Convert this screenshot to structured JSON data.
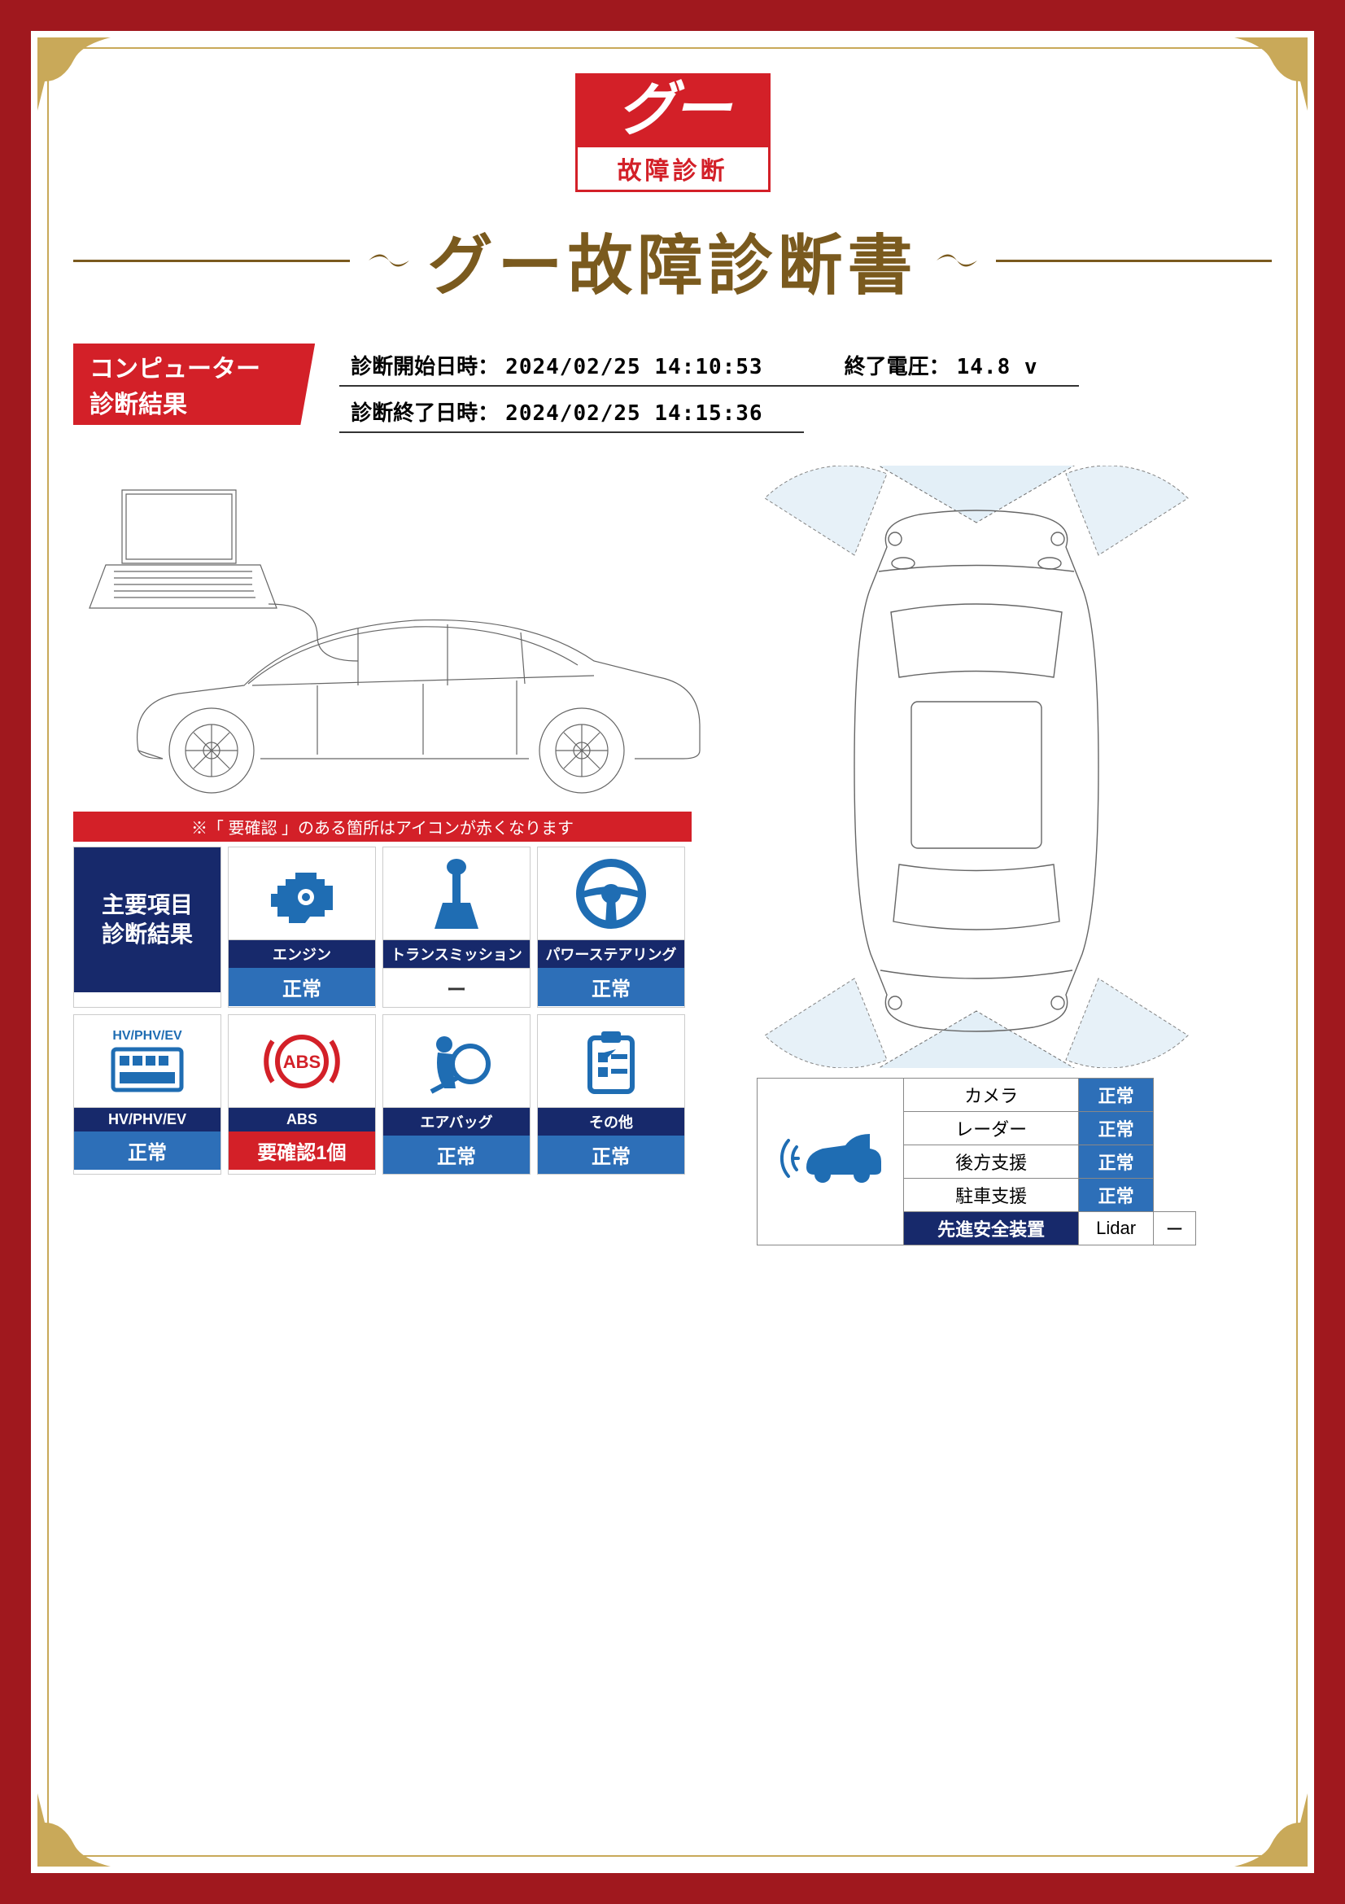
{
  "colors": {
    "frame_red": "#a0181e",
    "gold": "#c9a959",
    "brand_red": "#d32028",
    "title_gold": "#7a5a1e",
    "dark_navy": "#17296b",
    "blue": "#2d6fb8",
    "icon_blue": "#1f6db3",
    "icon_red": "#d32028",
    "line_gray": "#888888",
    "sensor_fill": "#d8e9f4"
  },
  "logo": {
    "top": "グー",
    "bottom": "故障診断"
  },
  "title": "グー故障診断書",
  "section_banner": "コンピューター診断結果",
  "meta": {
    "start_label": "診断開始日時：",
    "start_value": "2024/02/25 14:10:53",
    "voltage_label": "終了電圧：",
    "voltage_value": "14.8 v",
    "end_label": "診断終了日時：",
    "end_value": "2024/02/25 14:15:36"
  },
  "note": "※「 要確認 」のある箇所はアイコンが赤くなります",
  "grid_header": "主要項目\n診断結果",
  "cards": [
    {
      "label": "エンジン",
      "status": "正常",
      "status_bg": "bg-blue",
      "icon": "engine",
      "icon_color": "#1f6db3"
    },
    {
      "label": "トランスミッション",
      "status": "ー",
      "status_bg": "bg-white",
      "icon": "transmission",
      "icon_color": "#1f6db3"
    },
    {
      "label": "パワーステアリング",
      "status": "正常",
      "status_bg": "bg-blue",
      "icon": "steering",
      "icon_color": "#1f6db3"
    },
    {
      "label": "HV/PHV/EV",
      "status": "正常",
      "status_bg": "bg-blue",
      "icon": "hv",
      "icon_color": "#1f6db3"
    },
    {
      "label": "ABS",
      "status": "要確認1個",
      "status_bg": "bg-red",
      "icon": "abs",
      "icon_color": "#d32028"
    },
    {
      "label": "エアバッグ",
      "status": "正常",
      "status_bg": "bg-blue",
      "icon": "airbag",
      "icon_color": "#1f6db3"
    },
    {
      "label": "その他",
      "status": "正常",
      "status_bg": "bg-blue",
      "icon": "other",
      "icon_color": "#1f6db3"
    }
  ],
  "hv_text": "HV/PHV/EV",
  "safety": {
    "header": "先進安全装置",
    "rows": [
      {
        "label": "カメラ",
        "status": "正常",
        "status_bg": "status-cell"
      },
      {
        "label": "レーダー",
        "status": "正常",
        "status_bg": "status-cell"
      },
      {
        "label": "後方支援",
        "status": "正常",
        "status_bg": "status-cell"
      },
      {
        "label": "駐車支援",
        "status": "正常",
        "status_bg": "status-cell"
      },
      {
        "label": "Lidar",
        "status": "ー",
        "status_bg": ""
      }
    ]
  }
}
